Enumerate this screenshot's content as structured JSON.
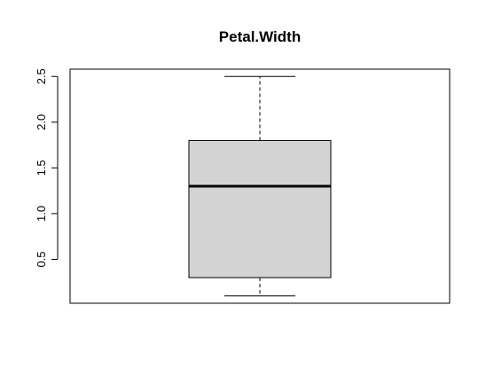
{
  "chart_data": {
    "type": "boxplot",
    "title": "Petal.Width",
    "xlabel": "",
    "ylabel": "",
    "ylim": [
      0.02,
      2.58
    ],
    "y_ticks": [
      0.5,
      1.0,
      1.5,
      2.0,
      2.5
    ],
    "y_tick_labels": [
      "0.5",
      "1.0",
      "1.5",
      "2.0",
      "2.5"
    ],
    "boxes": [
      {
        "min": 0.1,
        "q1": 0.3,
        "median": 1.3,
        "q3": 1.8,
        "max": 2.5
      }
    ],
    "grid": false,
    "legend": "none",
    "colors": {
      "box_fill": "#d3d3d3",
      "stroke": "#000000",
      "background": "#ffffff"
    }
  }
}
